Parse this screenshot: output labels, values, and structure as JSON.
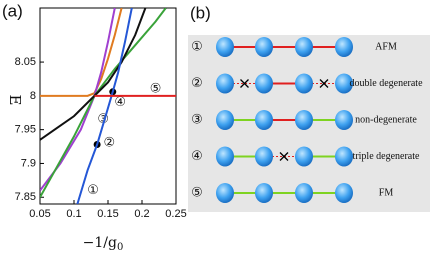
{
  "chart_data": {
    "type": "line",
    "panel_label": "(a)",
    "ylabel": "E",
    "xlabel": {
      "main": "−1/g",
      "sub": "0"
    },
    "xlim": [
      0.05,
      0.25
    ],
    "ylim": [
      7.84,
      8.13
    ],
    "xticks": [
      0.05,
      0.1,
      0.15,
      0.2,
      0.25
    ],
    "yticks": [
      7.85,
      7.9,
      7.95,
      8,
      8.05
    ],
    "series": [
      {
        "color": "#e07b20",
        "x": [
          0.05,
          0.12,
          0.13,
          0.14,
          0.15,
          0.16,
          0.17
        ],
        "values": [
          8,
          8,
          8.004,
          8.025,
          8.055,
          8.09,
          8.13
        ]
      },
      {
        "color": "#a040d0",
        "x": [
          0.05,
          0.08,
          0.11,
          0.13,
          0.14,
          0.15,
          0.16
        ],
        "values": [
          7.86,
          7.9,
          7.95,
          8,
          8.035,
          8.08,
          8.13
        ]
      },
      {
        "color": "#3aa33a",
        "x": [
          0.05,
          0.1,
          0.13,
          0.16,
          0.19,
          0.22,
          0.235
        ],
        "values": [
          7.85,
          7.94,
          8,
          8.04,
          8.075,
          8.11,
          8.13
        ]
      },
      {
        "color": "#111111",
        "x": [
          0.05,
          0.1,
          0.13,
          0.15,
          0.17,
          0.19,
          0.205
        ],
        "values": [
          7.935,
          7.97,
          8,
          8.02,
          8.05,
          8.09,
          8.13
        ]
      },
      {
        "color": "#2457d6",
        "x": [
          0.105,
          0.12,
          0.134,
          0.145,
          0.157,
          0.165,
          0.175,
          0.185
        ],
        "values": [
          7.84,
          7.89,
          7.928,
          7.965,
          8.006,
          8.035,
          8.08,
          8.13
        ]
      },
      {
        "color": "#e02020",
        "x": [
          0.13,
          0.25
        ],
        "values": [
          8,
          8
        ]
      }
    ],
    "points": {
      "color": "#000000",
      "x": [
        0.134,
        0.157
      ],
      "values": [
        7.928,
        8.006
      ]
    },
    "annotations": [
      {
        "text": "①",
        "x": 0.128,
        "y": 7.86
      },
      {
        "text": "②",
        "x": 0.152,
        "y": 7.93
      },
      {
        "text": "③",
        "x": 0.143,
        "y": 7.965
      },
      {
        "text": "④",
        "x": 0.168,
        "y": 7.99
      },
      {
        "text": "⑤",
        "x": 0.22,
        "y": 8.01
      }
    ]
  },
  "panel_b": {
    "panel_label": "(b)",
    "rows": [
      {
        "number": "①",
        "label": "AFM",
        "bonds": [
          {
            "color": "#e02020",
            "style": "solid"
          },
          {
            "color": "#e02020",
            "style": "solid"
          },
          {
            "color": "#e02020",
            "style": "solid"
          }
        ]
      },
      {
        "number": "②",
        "label": "double degenerate",
        "bonds": [
          {
            "color": "#e02020",
            "style": "broken"
          },
          {
            "color": "#e02020",
            "style": "solid"
          },
          {
            "color": "#e02020",
            "style": "broken"
          }
        ]
      },
      {
        "number": "③",
        "label": "non-degenerate",
        "bonds": [
          {
            "color": "#7ed321",
            "style": "solid"
          },
          {
            "color": "#e02020",
            "style": "solid"
          },
          {
            "color": "#7ed321",
            "style": "solid"
          }
        ]
      },
      {
        "number": "④",
        "label": "triple degenerate",
        "bonds": [
          {
            "color": "#7ed321",
            "style": "solid"
          },
          {
            "color": "#e02020",
            "style": "broken"
          },
          {
            "color": "#7ed321",
            "style": "solid"
          }
        ]
      },
      {
        "number": "⑤",
        "label": "FM",
        "bonds": [
          {
            "color": "#7ed321",
            "style": "solid"
          },
          {
            "color": "#7ed321",
            "style": "solid"
          },
          {
            "color": "#7ed321",
            "style": "solid"
          }
        ]
      }
    ]
  }
}
